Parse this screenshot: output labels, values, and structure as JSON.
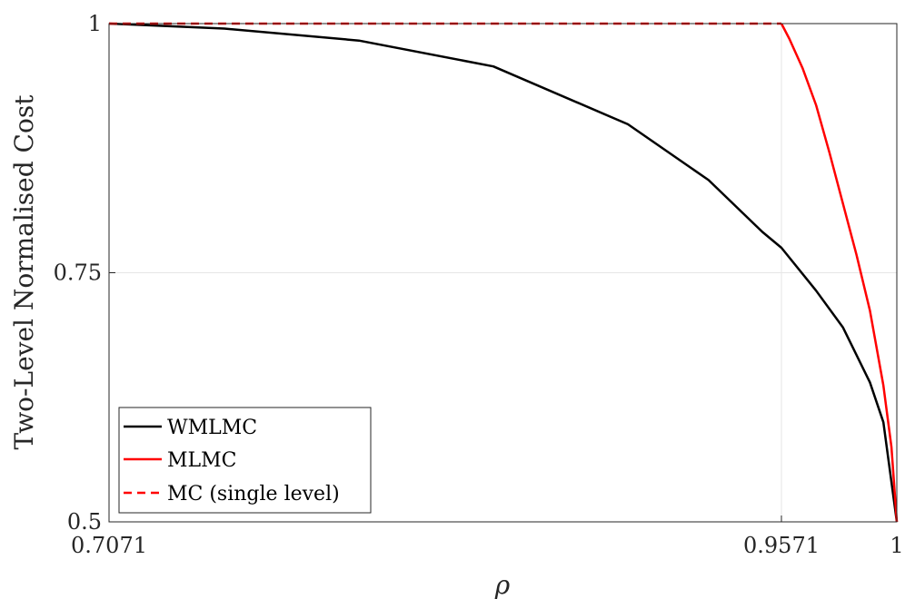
{
  "chart_data": {
    "type": "line",
    "title": "",
    "xlabel": "ρ",
    "ylabel": "Two-Level Normalised Cost",
    "xlim": [
      0.7071,
      1
    ],
    "ylim": [
      0.5,
      1
    ],
    "xticks": [
      0.7071,
      0.9571,
      1
    ],
    "xtick_labels": [
      "0.7071",
      "0.9571",
      "1"
    ],
    "yticks": [
      0.5,
      0.75,
      1
    ],
    "ytick_labels": [
      "0.5",
      "0.75",
      "1"
    ],
    "grid": true,
    "legend_position": "bottom-left",
    "series": [
      {
        "name": "WMLMC",
        "color": "#000000",
        "style": "solid",
        "x": [
          0.7071,
          0.75,
          0.8,
          0.85,
          0.9,
          0.93,
          0.95,
          0.9571,
          0.97,
          0.98,
          0.99,
          0.995,
          1.0
        ],
        "y": [
          1.0,
          0.995,
          0.983,
          0.957,
          0.899,
          0.843,
          0.791,
          0.775,
          0.732,
          0.695,
          0.64,
          0.6,
          0.5
        ]
      },
      {
        "name": "MLMC",
        "color": "#ff0000",
        "style": "solid",
        "x": [
          0.9571,
          0.96,
          0.965,
          0.97,
          0.975,
          0.98,
          0.985,
          0.99,
          0.995,
          0.998,
          1.0
        ],
        "y": [
          1.0,
          0.985,
          0.955,
          0.918,
          0.87,
          0.819,
          0.768,
          0.712,
          0.637,
          0.575,
          0.5
        ]
      },
      {
        "name": "MC (single level)",
        "color": "#ff0000",
        "style": "dashed",
        "x": [
          0.7071,
          0.9571
        ],
        "y": [
          1.0,
          1.0
        ]
      }
    ]
  }
}
